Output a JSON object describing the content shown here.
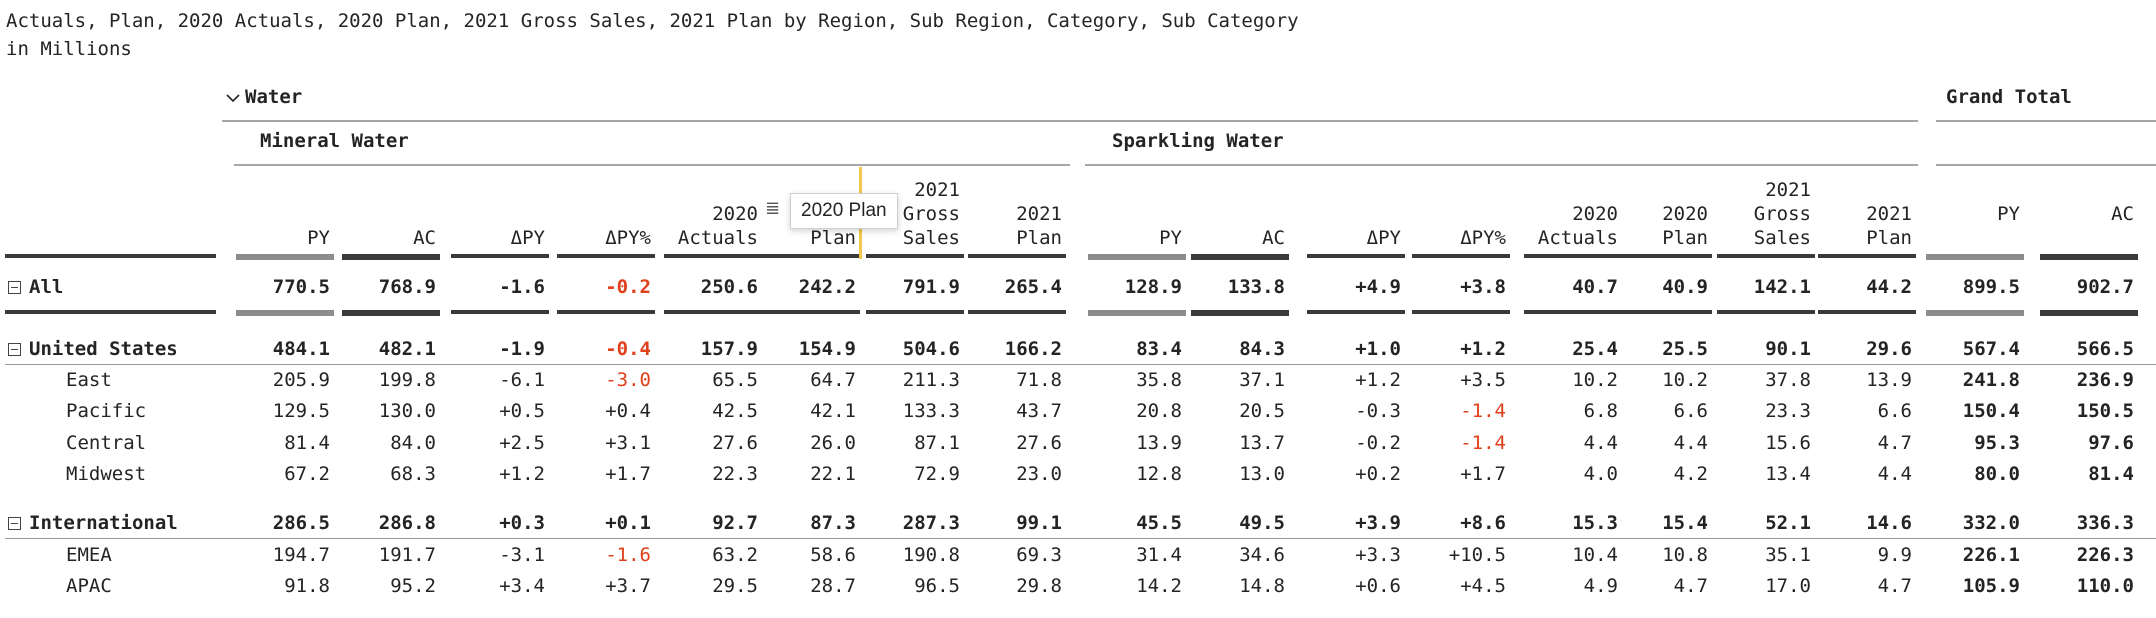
{
  "title": "Actuals, Plan, 2020 Actuals, 2020 Plan, 2021 Gross Sales, 2021 Plan by Region, Sub Region, Category, Sub Category",
  "subtitle": "in Millions",
  "group_label": "Water",
  "grand_total_label": "Grand Total",
  "categories": [
    "Mineral Water",
    "Sparkling Water"
  ],
  "columns": [
    "PY",
    "AC",
    "ΔPY",
    "ΔPY%",
    "2020\nActuals",
    "2020\nPlan",
    "2021\nGross\nSales",
    "2021\nPlan"
  ],
  "grand_total_columns": [
    "PY",
    "AC"
  ],
  "tooltip": "2020 Plan",
  "colors": {
    "negative": "#e0401b",
    "py_bar": "#8c8c8c",
    "ac_bar": "#3a3a3a",
    "resize_line": "#f2c94c"
  },
  "rows": [
    {
      "label": "All",
      "level": 0,
      "bold": true,
      "expander": true,
      "mw": [
        "770.5",
        "768.9",
        "-1.6",
        "-0.2",
        "250.6",
        "242.2",
        "791.9",
        "265.4"
      ],
      "sw": [
        "128.9",
        "133.8",
        "+4.9",
        "+3.8",
        "40.7",
        "40.9",
        "142.1",
        "44.2"
      ],
      "gt": [
        "899.5",
        "902.7"
      ]
    },
    {
      "label": "United States",
      "level": 0,
      "bold": true,
      "expander": true,
      "mw": [
        "484.1",
        "482.1",
        "-1.9",
        "-0.4",
        "157.9",
        "154.9",
        "504.6",
        "166.2"
      ],
      "sw": [
        "83.4",
        "84.3",
        "+1.0",
        "+1.2",
        "25.4",
        "25.5",
        "90.1",
        "29.6"
      ],
      "gt": [
        "567.4",
        "566.5"
      ]
    },
    {
      "label": "East",
      "level": 1,
      "bold": false,
      "mw": [
        "205.9",
        "199.8",
        "-6.1",
        "-3.0",
        "65.5",
        "64.7",
        "211.3",
        "71.8"
      ],
      "sw": [
        "35.8",
        "37.1",
        "+1.2",
        "+3.5",
        "10.2",
        "10.2",
        "37.8",
        "13.9"
      ],
      "gt": [
        "241.8",
        "236.9"
      ]
    },
    {
      "label": "Pacific",
      "level": 1,
      "bold": false,
      "mw": [
        "129.5",
        "130.0",
        "+0.5",
        "+0.4",
        "42.5",
        "42.1",
        "133.3",
        "43.7"
      ],
      "sw": [
        "20.8",
        "20.5",
        "-0.3",
        "-1.4",
        "6.8",
        "6.6",
        "23.3",
        "6.6"
      ],
      "gt": [
        "150.4",
        "150.5"
      ]
    },
    {
      "label": "Central",
      "level": 1,
      "bold": false,
      "mw": [
        "81.4",
        "84.0",
        "+2.5",
        "+3.1",
        "27.6",
        "26.0",
        "87.1",
        "27.6"
      ],
      "sw": [
        "13.9",
        "13.7",
        "-0.2",
        "-1.4",
        "4.4",
        "4.4",
        "15.6",
        "4.7"
      ],
      "gt": [
        "95.3",
        "97.6"
      ]
    },
    {
      "label": "Midwest",
      "level": 1,
      "bold": false,
      "mw": [
        "67.2",
        "68.3",
        "+1.2",
        "+1.7",
        "22.3",
        "22.1",
        "72.9",
        "23.0"
      ],
      "sw": [
        "12.8",
        "13.0",
        "+0.2",
        "+1.7",
        "4.0",
        "4.2",
        "13.4",
        "4.4"
      ],
      "gt": [
        "80.0",
        "81.4"
      ]
    },
    {
      "label": "International",
      "level": 0,
      "bold": true,
      "expander": true,
      "mw": [
        "286.5",
        "286.8",
        "+0.3",
        "+0.1",
        "92.7",
        "87.3",
        "287.3",
        "99.1"
      ],
      "sw": [
        "45.5",
        "49.5",
        "+3.9",
        "+8.6",
        "15.3",
        "15.4",
        "52.1",
        "14.6"
      ],
      "gt": [
        "332.0",
        "336.3"
      ]
    },
    {
      "label": "EMEA",
      "level": 1,
      "bold": false,
      "mw": [
        "194.7",
        "191.7",
        "-3.1",
        "-1.6",
        "63.2",
        "58.6",
        "190.8",
        "69.3"
      ],
      "sw": [
        "31.4",
        "34.6",
        "+3.3",
        "+10.5",
        "10.4",
        "10.8",
        "35.1",
        "9.9"
      ],
      "gt": [
        "226.1",
        "226.3"
      ]
    },
    {
      "label": "APAC",
      "level": 1,
      "bold": false,
      "mw": [
        "91.8",
        "95.2",
        "+3.4",
        "+3.7",
        "29.5",
        "28.7",
        "96.5",
        "29.8"
      ],
      "sw": [
        "14.2",
        "14.8",
        "+0.6",
        "+4.5",
        "4.9",
        "4.7",
        "17.0",
        "4.7"
      ],
      "gt": [
        "105.9",
        "110.0"
      ]
    }
  ]
}
